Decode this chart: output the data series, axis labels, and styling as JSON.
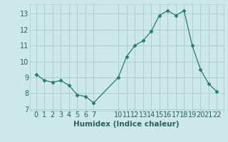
{
  "x": [
    0,
    1,
    2,
    3,
    4,
    5,
    6,
    7,
    10,
    11,
    12,
    13,
    14,
    15,
    16,
    17,
    18,
    19,
    20,
    21,
    22
  ],
  "y": [
    9.2,
    8.8,
    8.7,
    8.8,
    8.5,
    7.9,
    7.8,
    7.4,
    9.0,
    10.3,
    11.0,
    11.3,
    11.9,
    12.9,
    13.2,
    12.9,
    13.2,
    11.0,
    9.5,
    8.6,
    8.1
  ],
  "line_color": "#2a7a6a",
  "marker": "D",
  "marker_size": 2.5,
  "bg_color": "#cce8e8",
  "grid_color": "#aacece",
  "xlabel": "Humidex (Indice chaleur)",
  "ylim": [
    6.9,
    13.6
  ],
  "yticks": [
    7,
    8,
    9,
    10,
    11,
    12,
    13
  ],
  "xticks": [
    0,
    1,
    2,
    3,
    4,
    5,
    6,
    7,
    10,
    11,
    12,
    13,
    14,
    15,
    16,
    17,
    18,
    19,
    20,
    21,
    22
  ],
  "tick_color": "#2a6060",
  "label_fontsize": 7.5,
  "tick_fontsize": 7
}
